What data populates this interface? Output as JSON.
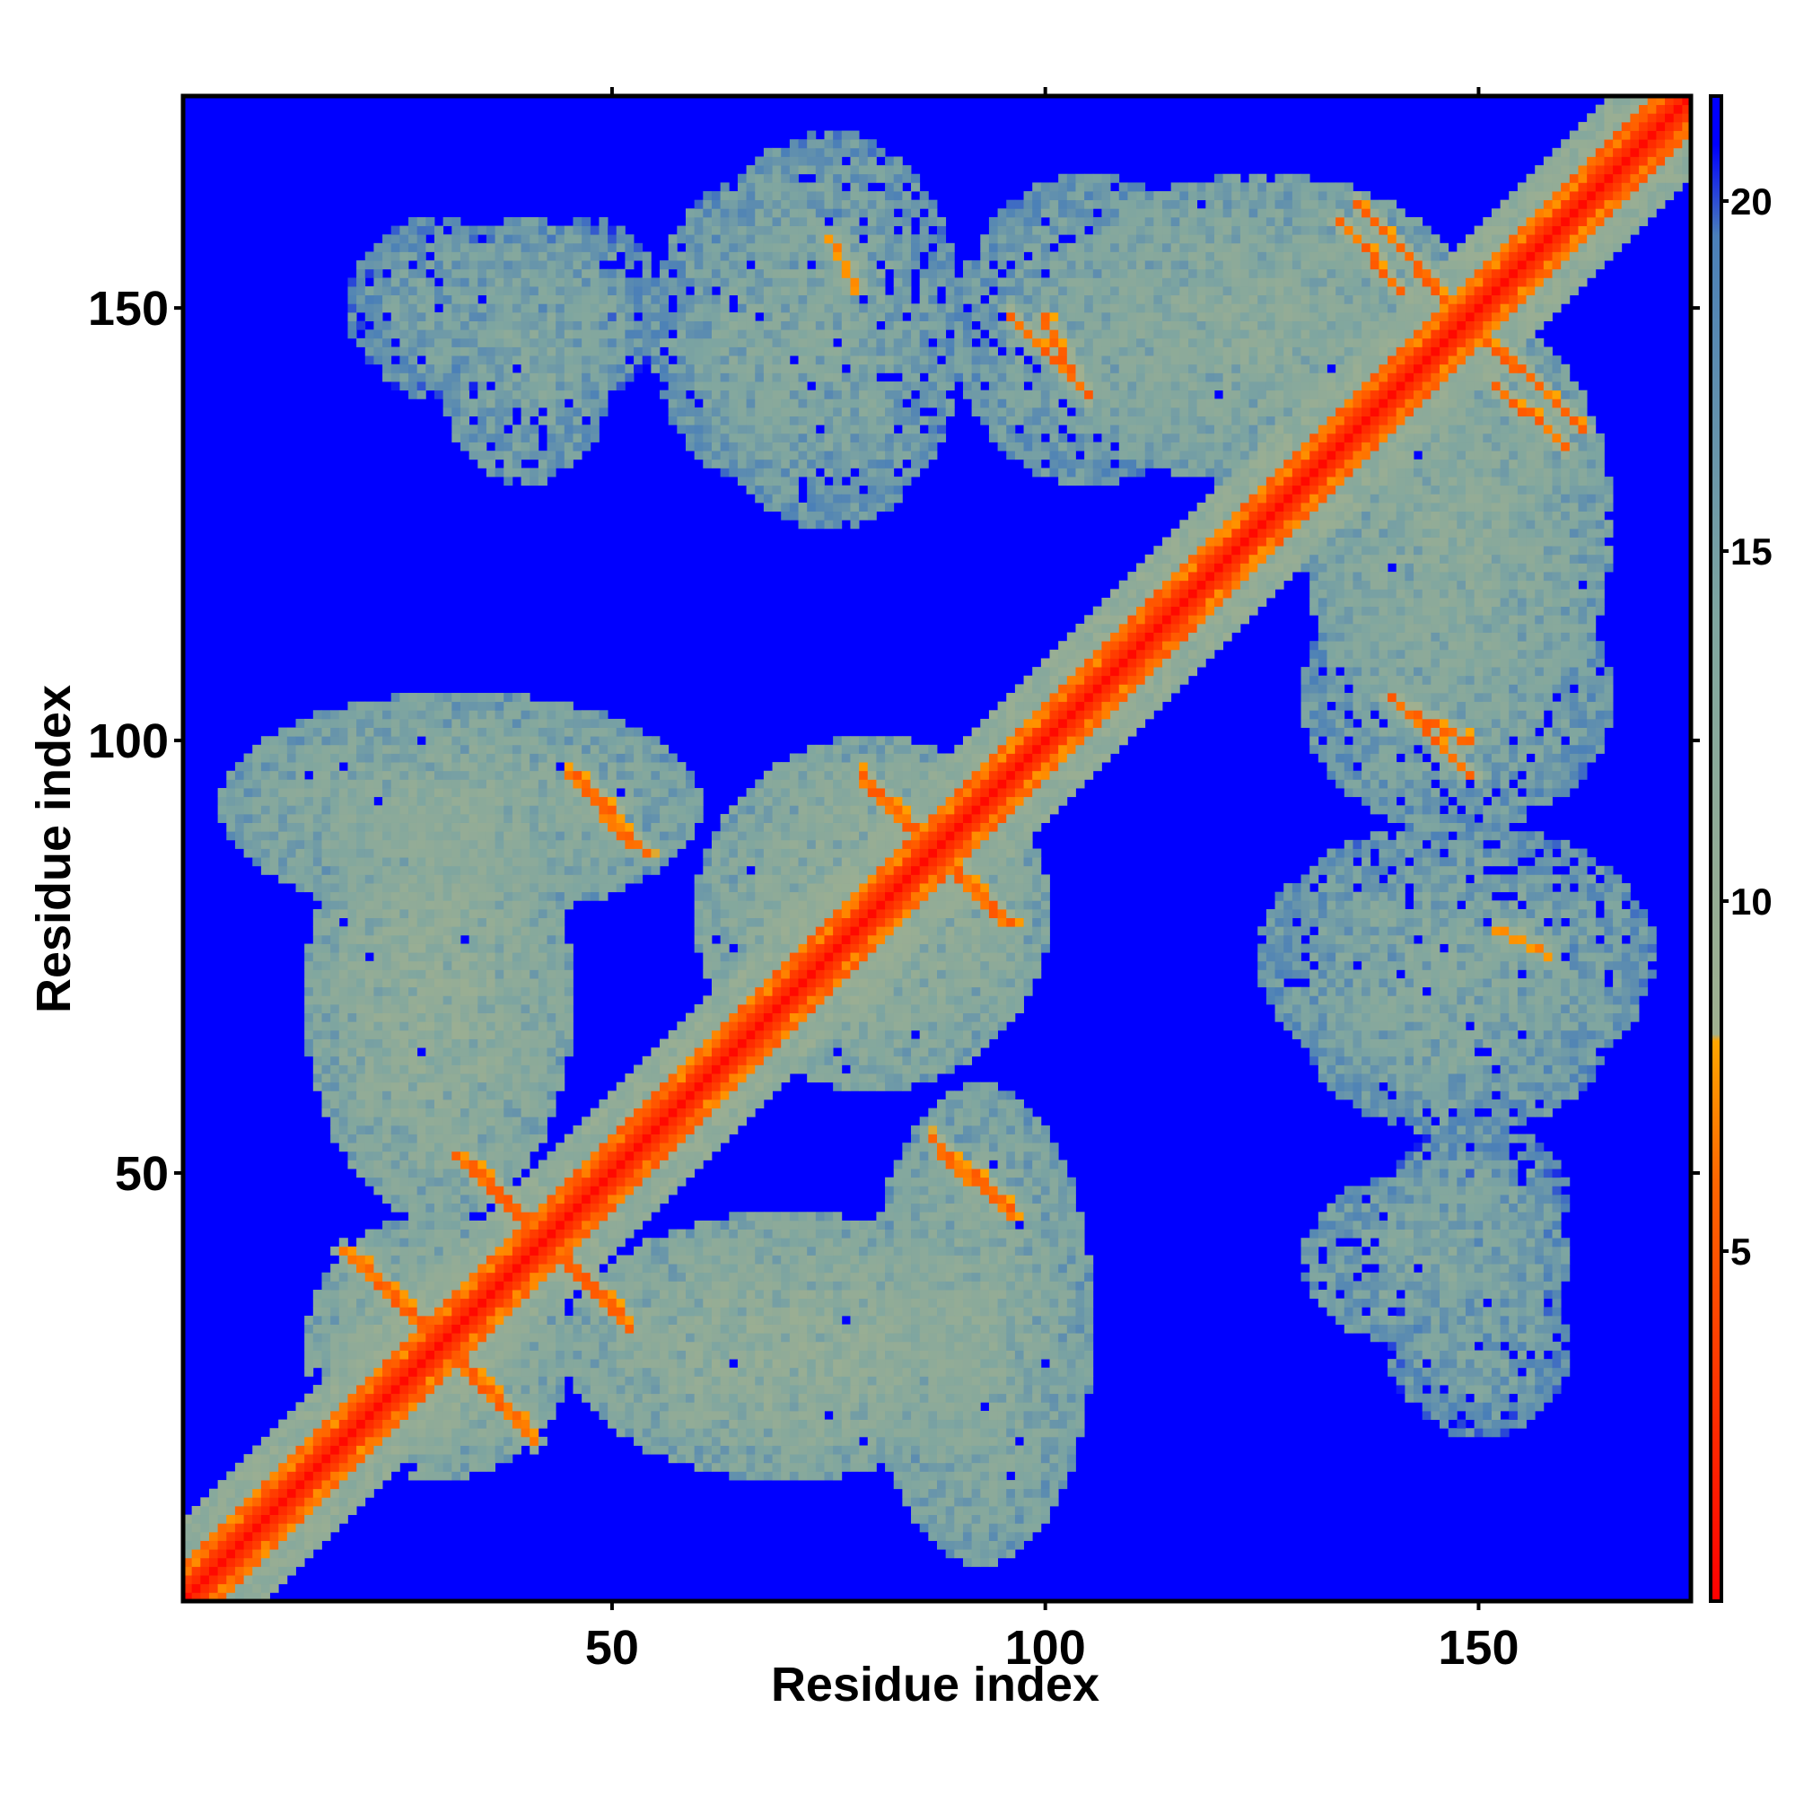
{
  "chart_data": {
    "type": "heatmap",
    "title": "",
    "xlabel": "Residue index",
    "ylabel": "Residue index",
    "n_residues": 174,
    "xlim": [
      1,
      174
    ],
    "ylim": [
      1,
      174
    ],
    "x_ticks": [
      50,
      100,
      150
    ],
    "y_ticks": [
      50,
      100,
      150
    ],
    "x_tick_labels": [
      "50",
      "100",
      "150"
    ],
    "y_tick_labels": [
      "50",
      "100",
      "150"
    ],
    "colorbar": {
      "range": [
        0,
        21.5
      ],
      "ticks": [
        5,
        10,
        15,
        20
      ],
      "tick_labels": [
        "5",
        "10",
        "15",
        "20"
      ],
      "stops": [
        {
          "value": 0,
          "color": "#ff0000"
        },
        {
          "value": 6.0,
          "color": "#ff6600"
        },
        {
          "value": 8.0,
          "color": "#ffa500"
        },
        {
          "value": 8.1,
          "color": "#a0b090"
        },
        {
          "value": 14.0,
          "color": "#7fa6a0"
        },
        {
          "value": 19.5,
          "color": "#4a7fb8"
        },
        {
          "value": 20.8,
          "color": "#0000ff"
        }
      ]
    },
    "background_value": 21,
    "background_color": "#0000ff",
    "grid": false,
    "legend": "colorbar-right",
    "contact_clusters": [
      {
        "x": [
          15,
          45
        ],
        "y": [
          15,
          45
        ],
        "level": 12
      },
      {
        "x": [
          15,
          45
        ],
        "y": [
          45,
          95
        ],
        "level": 12
      },
      {
        "x": [
          45,
          95
        ],
        "y": [
          15,
          45
        ],
        "level": 12
      },
      {
        "x": [
          60,
          100
        ],
        "y": [
          60,
          100
        ],
        "level": 12
      },
      {
        "x": [
          80,
          105
        ],
        "y": [
          5,
          60
        ],
        "level": 13
      },
      {
        "x": [
          5,
          60
        ],
        "y": [
          80,
          105
        ],
        "level": 13
      },
      {
        "x": [
          30,
          50
        ],
        "y": [
          130,
          160
        ],
        "level": 14
      },
      {
        "x": [
          55,
          80
        ],
        "y": [
          130,
          165
        ],
        "level": 14
      },
      {
        "x": [
          90,
          120
        ],
        "y": [
          130,
          165
        ],
        "level": 14
      },
      {
        "x": [
          125,
          170
        ],
        "y": [
          60,
          90
        ],
        "level": 14
      },
      {
        "x": [
          140,
          160
        ],
        "y": [
          40,
          55
        ],
        "level": 15
      },
      {
        "x": [
          140,
          160
        ],
        "y": [
          20,
          40
        ],
        "level": 15
      },
      {
        "x": [
          130,
          165
        ],
        "y": [
          100,
          150
        ],
        "level": 13
      },
      {
        "x": [
          100,
          150
        ],
        "y": [
          130,
          165
        ],
        "level": 13
      }
    ],
    "strands": [
      {
        "from": [
          19,
          41
        ],
        "to": [
          40,
          21
        ],
        "level": 6
      },
      {
        "from": [
          32,
          52
        ],
        "to": [
          51,
          34
        ],
        "level": 6
      },
      {
        "from": [
          46,
          96
        ],
        "to": [
          54,
          87
        ],
        "level": 6
      },
      {
        "from": [
          79,
          95
        ],
        "to": [
          96,
          79
        ],
        "level": 6
      },
      {
        "from": [
          88,
          52
        ],
        "to": [
          96,
          45
        ],
        "level": 6
      },
      {
        "from": [
          134,
          160
        ],
        "to": [
          141,
          152
        ],
        "level": 6
      },
      {
        "from": [
          143,
          154
        ],
        "to": [
          162,
          136
        ],
        "level": 6
      },
      {
        "from": [
          140,
          105
        ],
        "to": [
          149,
          96
        ],
        "level": 6
      },
      {
        "from": [
          100,
          149
        ],
        "to": [
          103,
          142
        ],
        "level": 6
      },
      {
        "from": [
          75,
          158
        ],
        "to": [
          78,
          152
        ],
        "level": 7
      }
    ]
  }
}
